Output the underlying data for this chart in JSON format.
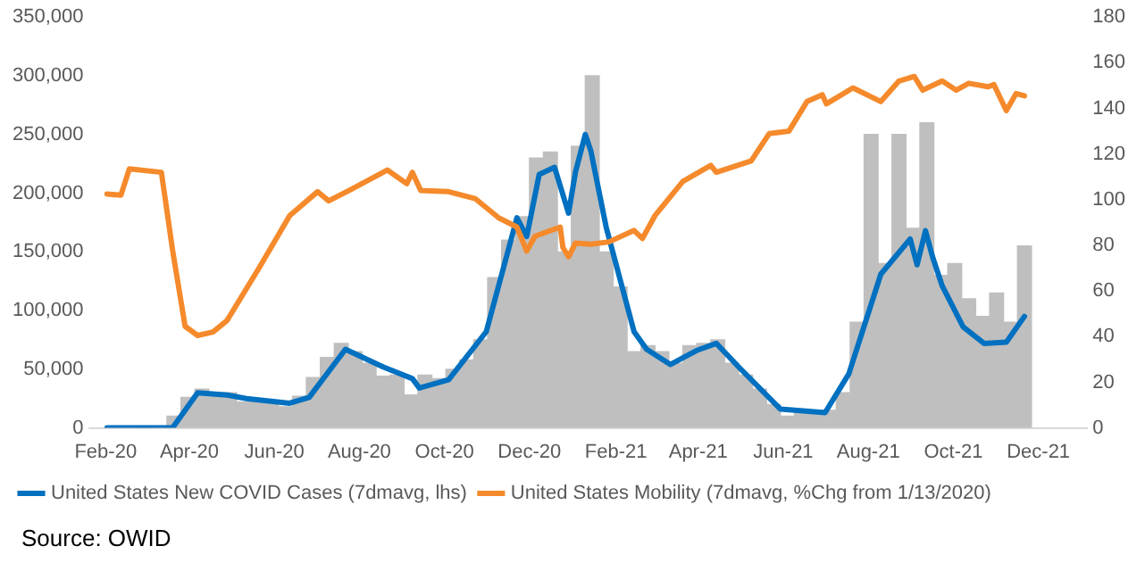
{
  "chart_data": {
    "type": "line",
    "annotations": [
      "Source: OWID"
    ],
    "legend": "bottom",
    "grid": false,
    "marker": "none",
    "xlim": [
      "2020-01-20",
      "2022-01-05"
    ],
    "xticks": [
      {
        "value": "2020-02-01",
        "label": "Feb-20"
      },
      {
        "value": "2020-04-01",
        "label": "Apr-20"
      },
      {
        "value": "2020-06-01",
        "label": "Jun-20"
      },
      {
        "value": "2020-08-01",
        "label": "Aug-20"
      },
      {
        "value": "2020-10-01",
        "label": "Oct-20"
      },
      {
        "value": "2020-12-01",
        "label": "Dec-20"
      },
      {
        "value": "2021-02-01",
        "label": "Feb-21"
      },
      {
        "value": "2021-04-01",
        "label": "Apr-21"
      },
      {
        "value": "2021-06-01",
        "label": "Jun-21"
      },
      {
        "value": "2021-08-01",
        "label": "Aug-21"
      },
      {
        "value": "2021-10-01",
        "label": "Oct-21"
      },
      {
        "value": "2021-12-01",
        "label": "Dec-21"
      }
    ],
    "ylim": [
      0,
      350000
    ],
    "yticks": [
      {
        "value": 0,
        "label": "0"
      },
      {
        "value": 50000,
        "label": "50,000"
      },
      {
        "value": 100000,
        "label": "100,000"
      },
      {
        "value": 150000,
        "label": "150,000"
      },
      {
        "value": 200000,
        "label": "200,000"
      },
      {
        "value": 250000,
        "label": "250,000"
      },
      {
        "value": 300000,
        "label": "300,000"
      },
      {
        "value": 350000,
        "label": "350,000"
      }
    ],
    "y2lim": [
      0,
      180
    ],
    "y2ticks": [
      0,
      20,
      40,
      60,
      80,
      100,
      120,
      140,
      160,
      180
    ],
    "series": [
      {
        "type": "bar",
        "color": "#bfbfbf",
        "x": [
          "2020-03-01",
          "2020-03-11",
          "2020-03-21",
          "2020-03-31",
          "2020-04-10",
          "2020-04-20",
          "2020-04-30",
          "2020-05-10",
          "2020-05-20",
          "2020-05-30",
          "2020-06-09",
          "2020-06-19",
          "2020-06-29",
          "2020-07-09",
          "2020-07-19",
          "2020-07-29",
          "2020-08-08",
          "2020-08-18",
          "2020-08-28",
          "2020-09-07",
          "2020-09-17",
          "2020-09-27",
          "2020-10-07",
          "2020-10-17",
          "2020-10-27",
          "2020-11-06",
          "2020-11-16",
          "2020-11-26",
          "2020-12-06",
          "2020-12-16",
          "2020-12-26",
          "2021-01-05",
          "2021-01-15",
          "2021-01-25",
          "2021-02-04",
          "2021-02-14",
          "2021-02-24",
          "2021-03-06",
          "2021-03-16",
          "2021-03-26",
          "2021-04-05",
          "2021-04-15",
          "2021-04-25",
          "2021-05-05",
          "2021-05-15",
          "2021-05-25",
          "2021-06-04",
          "2021-06-14",
          "2021-06-24",
          "2021-07-04",
          "2021-07-14",
          "2021-07-24",
          "2021-08-03",
          "2021-08-13",
          "2021-08-23",
          "2021-09-02",
          "2021-09-12",
          "2021-09-22",
          "2021-10-02",
          "2021-10-12",
          "2021-10-22",
          "2021-11-01",
          "2021-11-11",
          "2021-11-21"
        ],
        "values": [
          0,
          null,
          10000,
          26000,
          33000,
          28000,
          30000,
          22000,
          22000,
          23000,
          18000,
          27000,
          43000,
          60000,
          72000,
          65000,
          55000,
          44000,
          45000,
          28000,
          45000,
          42000,
          50000,
          58000,
          75000,
          128000,
          160000,
          180000,
          230000,
          235000,
          150000,
          240000,
          300000,
          150000,
          120000,
          65000,
          70000,
          65000,
          55000,
          70000,
          72000,
          75000,
          55000,
          45000,
          33000,
          20000,
          10000,
          15000,
          12000,
          15000,
          30000,
          90000,
          250000,
          140000,
          250000,
          170000,
          260000,
          130000,
          140000,
          110000,
          95000,
          115000,
          90000,
          155000
        ]
      },
      {
        "name": "United States New COVID Cases (7dmavg, lhs)",
        "color": "#0070c0",
        "x": [
          "2020-02-02",
          "2020-03-20",
          "2020-04-07",
          "2020-04-28",
          "2020-05-12",
          "2020-06-12",
          "2020-06-26",
          "2020-07-22",
          "2020-08-18",
          "2020-09-08",
          "2020-09-13",
          "2020-10-04",
          "2020-10-31",
          "2020-11-22",
          "2020-11-29",
          "2020-12-08",
          "2020-12-19",
          "2020-12-29",
          "2021-01-03",
          "2021-01-10",
          "2021-01-14",
          "2021-01-25",
          "2021-02-14",
          "2021-02-23",
          "2021-03-12",
          "2021-03-31",
          "2021-04-14",
          "2021-04-30",
          "2021-05-30",
          "2021-07-01",
          "2021-07-18",
          "2021-08-10",
          "2021-08-31",
          "2021-09-05",
          "2021-09-11",
          "2021-09-16",
          "2021-09-23",
          "2021-10-08",
          "2021-10-23",
          "2021-11-08",
          "2021-11-21"
        ],
        "values": [
          0,
          0,
          30000,
          28000,
          25000,
          21000,
          26000,
          67000,
          52000,
          42000,
          34000,
          41000,
          82000,
          179000,
          163000,
          216000,
          222000,
          183000,
          218000,
          250000,
          236000,
          171000,
          82000,
          67000,
          54000,
          66000,
          72000,
          52000,
          16000,
          13000,
          46000,
          131000,
          161000,
          139000,
          168000,
          146000,
          121000,
          86000,
          72000,
          73000,
          95000
        ]
      },
      {
        "axis": "y2",
        "name": "United States Mobility (7dmavg, %Chg from 1/13/2020)",
        "color": "#f58a2c",
        "x": [
          "2020-02-02",
          "2020-02-12",
          "2020-02-18",
          "2020-03-12",
          "2020-03-20",
          "2020-03-29",
          "2020-04-07",
          "2020-04-18",
          "2020-04-28",
          "2020-05-21",
          "2020-06-12",
          "2020-07-02",
          "2020-07-10",
          "2020-07-26",
          "2020-08-21",
          "2020-09-04",
          "2020-09-08",
          "2020-09-14",
          "2020-10-04",
          "2020-10-23",
          "2020-11-09",
          "2020-11-22",
          "2020-11-29",
          "2020-12-05",
          "2020-12-23",
          "2020-12-25",
          "2020-12-29",
          "2021-01-03",
          "2021-01-14",
          "2021-01-27",
          "2021-02-14",
          "2021-02-20",
          "2021-03-01",
          "2021-03-21",
          "2021-04-10",
          "2021-04-14",
          "2021-05-09",
          "2021-05-22",
          "2021-06-05",
          "2021-06-18",
          "2021-06-29",
          "2021-07-02",
          "2021-07-21",
          "2021-08-10",
          "2021-08-23",
          "2021-09-03",
          "2021-09-09",
          "2021-09-23",
          "2021-10-03",
          "2021-10-12",
          "2021-10-26",
          "2021-10-30",
          "2021-11-08",
          "2021-11-15",
          "2021-11-21"
        ],
        "values": [
          102.5,
          102,
          113.5,
          112,
          78,
          44.5,
          40.5,
          42,
          47,
          70,
          93,
          103.5,
          99.5,
          104.5,
          113,
          107,
          112,
          104,
          103.5,
          100.5,
          92,
          88,
          77.5,
          84,
          88,
          79,
          75,
          81,
          80.5,
          81.5,
          86.5,
          83,
          93,
          108,
          115,
          112,
          117,
          129,
          130,
          143,
          146,
          142,
          149,
          143,
          152,
          154,
          148,
          152,
          148,
          151,
          149.5,
          150.5,
          139,
          146.5,
          145.5
        ]
      }
    ]
  }
}
